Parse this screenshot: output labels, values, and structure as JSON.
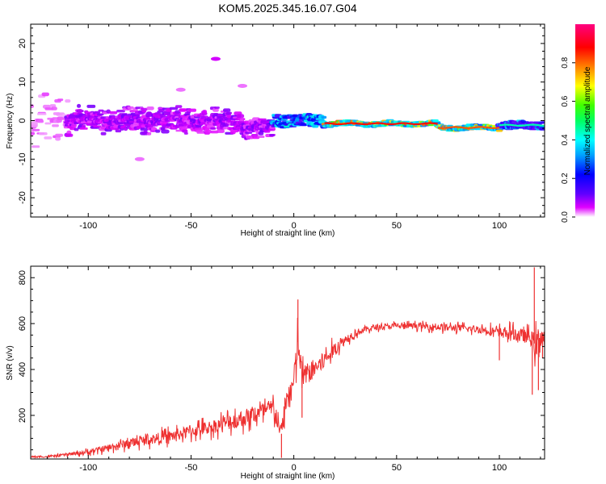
{
  "title": "KOM5.2025.345.16.07.G04",
  "chart_data": [
    {
      "type": "heatmap",
      "xlabel": "Height of straight line (km)",
      "ylabel": "Frequency (Hz)",
      "xlim": [
        -128,
        122
      ],
      "ylim": [
        -25,
        25
      ],
      "xticks": [
        -100,
        -50,
        0,
        50,
        100
      ],
      "yticks": [
        -20,
        -10,
        0,
        10,
        20
      ],
      "colorbar": {
        "label": "Normalized spectral amplitude",
        "range": [
          0,
          1
        ],
        "ticks": [
          0.0,
          0.2,
          0.4,
          0.6,
          0.8
        ],
        "colormap": [
          "#ffffff",
          "#e000ff",
          "#6000ff",
          "#0000ff",
          "#00a0ff",
          "#00ffff",
          "#00ff60",
          "#40ff00",
          "#ffff00",
          "#ff8000",
          "#ff0000",
          "#ff0080"
        ]
      },
      "segments": [
        {
          "x_start": -128,
          "x_end": -110,
          "freq_center": 0,
          "spread": 12,
          "amplitude": 0.05
        },
        {
          "x_start": -110,
          "x_end": -25,
          "freq_center": 0,
          "spread": 4,
          "amplitude": 0.12
        },
        {
          "x_start": -25,
          "x_end": -10,
          "freq_center": -2,
          "spread": 3,
          "amplitude": 0.12
        },
        {
          "x_start": -10,
          "x_end": 15,
          "freq_center": 0,
          "spread": 1.5,
          "amplitude": 0.35
        },
        {
          "x_start": 15,
          "x_end": 70,
          "freq_center": -0.8,
          "spread": 0.6,
          "amplitude": 0.8
        },
        {
          "x_start": 70,
          "x_end": 100,
          "freq_center": -1.8,
          "spread": 0.6,
          "amplitude": 0.75
        },
        {
          "x_start": 100,
          "x_end": 122,
          "freq_center": -1.2,
          "spread": 1,
          "amplitude": 0.4
        }
      ],
      "isolated_features": [
        {
          "x": -38,
          "freq": 16,
          "amplitude": 0.1
        },
        {
          "x": -55,
          "freq": 8,
          "amplitude": 0.05
        },
        {
          "x": -25,
          "freq": 9,
          "amplitude": 0.05
        },
        {
          "x": -75,
          "freq": -10,
          "amplitude": 0.05
        }
      ]
    },
    {
      "type": "line",
      "xlabel": "Height of straight line (km)",
      "ylabel": "SNR (v/v)",
      "xlim": [
        -128,
        122
      ],
      "ylim": [
        10,
        850
      ],
      "xticks": [
        -100,
        -50,
        0,
        50,
        100
      ],
      "yticks": [
        200,
        400,
        600,
        800
      ],
      "color": "#ee3030",
      "x": [
        -128,
        -120,
        -110,
        -100,
        -90,
        -80,
        -70,
        -60,
        -50,
        -40,
        -30,
        -20,
        -10,
        -6,
        -4,
        0,
        2,
        4,
        8,
        12,
        16,
        20,
        25,
        30,
        35,
        40,
        50,
        60,
        70,
        80,
        90,
        95,
        100,
        105,
        110,
        115,
        118,
        120,
        122
      ],
      "y": [
        20,
        20,
        30,
        40,
        60,
        80,
        95,
        110,
        130,
        150,
        175,
        200,
        230,
        120,
        260,
        340,
        520,
        370,
        390,
        420,
        450,
        490,
        530,
        560,
        575,
        585,
        590,
        590,
        585,
        580,
        575,
        570,
        560,
        560,
        550,
        540,
        500,
        560,
        520
      ],
      "noise": [
        6,
        8,
        12,
        20,
        30,
        40,
        45,
        50,
        55,
        60,
        70,
        80,
        90,
        60,
        120,
        120,
        150,
        100,
        90,
        80,
        70,
        60,
        40,
        30,
        25,
        25,
        25,
        25,
        30,
        30,
        35,
        40,
        45,
        50,
        55,
        60,
        120,
        120,
        90
      ],
      "spikes": [
        {
          "x": 2,
          "y": 705
        },
        {
          "x": 4,
          "y": 190
        },
        {
          "x": -6,
          "y": 15
        },
        {
          "x": 100,
          "y": 440
        },
        {
          "x": 116,
          "y": 290
        },
        {
          "x": 117,
          "y": 845
        },
        {
          "x": 119,
          "y": 310
        },
        {
          "x": 121,
          "y": 450
        }
      ]
    }
  ]
}
